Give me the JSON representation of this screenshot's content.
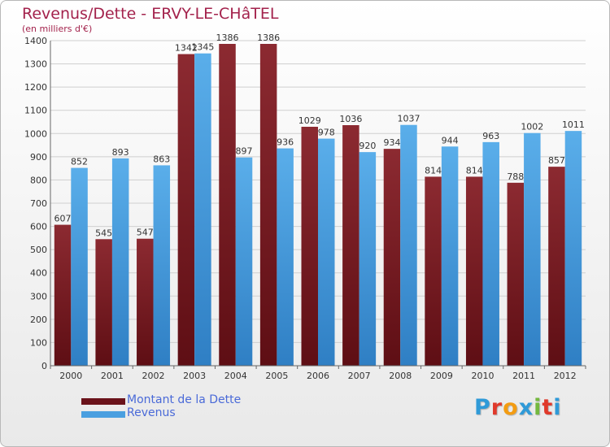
{
  "header": {
    "title": "Revenus/Dette - ERVY-LE-CHâTEL",
    "subtitle": "(en milliers d'€)"
  },
  "chart_data": {
    "type": "bar",
    "categories": [
      "2000",
      "2001",
      "2002",
      "2003",
      "2004",
      "2005",
      "2006",
      "2007",
      "2008",
      "2009",
      "2010",
      "2011",
      "2012"
    ],
    "series": [
      {
        "name": "Montant de la Dette",
        "color": "#7a1a22",
        "values": [
          607,
          545,
          547,
          1342,
          1386,
          1386,
          1029,
          1036,
          934,
          814,
          814,
          788,
          857
        ]
      },
      {
        "name": "Revenus",
        "color": "#4a9fe0",
        "values": [
          852,
          893,
          863,
          1345,
          897,
          936,
          978,
          920,
          1037,
          944,
          963,
          1002,
          1011
        ]
      }
    ],
    "ylim": [
      0,
      1400
    ],
    "yticks": [
      0,
      100,
      200,
      300,
      400,
      500,
      600,
      700,
      800,
      900,
      1000,
      1100,
      1200,
      1300,
      1400
    ],
    "grid": true,
    "legend": "bottom-left"
  },
  "legend": {
    "items": [
      {
        "label": "Montant de la Dette",
        "color": "#7a1a22"
      },
      {
        "label": "Revenus",
        "color": "#4a9fe0"
      }
    ]
  },
  "logo": {
    "text": "Proxiti",
    "colors": [
      "#2f9ad8",
      "#e0392b",
      "#f39c12",
      "#2f9ad8",
      "#74b83f",
      "#e0392b",
      "#2f9ad8"
    ]
  }
}
